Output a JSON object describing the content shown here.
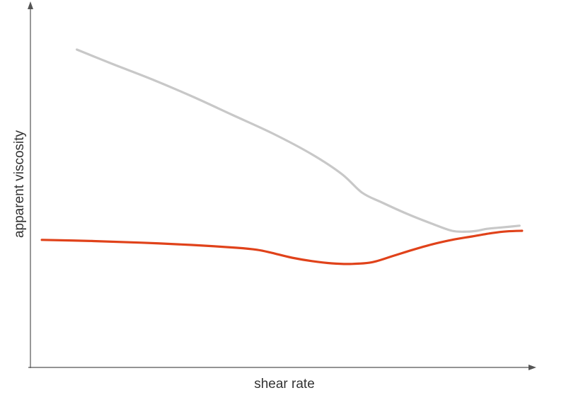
{
  "chart_data": {
    "type": "line",
    "title": "",
    "xlabel": "shear rate",
    "ylabel": "apparent viscosity",
    "xlim": [
      0,
      100
    ],
    "ylim": [
      0,
      100
    ],
    "grid": false,
    "legend": "none",
    "series": [
      {
        "color": "#c8c8c8",
        "x": [
          9,
          16,
          24,
          32,
          40,
          48,
          56,
          62,
          66,
          70,
          75,
          80,
          84,
          87,
          89,
          91,
          94,
          97.5
        ],
        "y": [
          100,
          95,
          89.5,
          83.5,
          77,
          70.5,
          63,
          56,
          49.5,
          46,
          42,
          38.5,
          36,
          35.7,
          36,
          36.7,
          37.2,
          37.8
        ]
      },
      {
        "color": "#e0421a",
        "x": [
          2,
          12,
          22,
          32,
          41,
          45,
          48,
          52,
          56,
          60,
          64,
          68,
          72,
          76,
          80,
          84,
          88,
          92,
          95,
          98
        ],
        "y": [
          32.8,
          32.4,
          31.8,
          31,
          30,
          29.3,
          28.2,
          26.5,
          25.3,
          24.5,
          24.3,
          24.9,
          27,
          29.2,
          31.2,
          32.8,
          34,
          35.2,
          35.8,
          36
        ]
      }
    ]
  }
}
